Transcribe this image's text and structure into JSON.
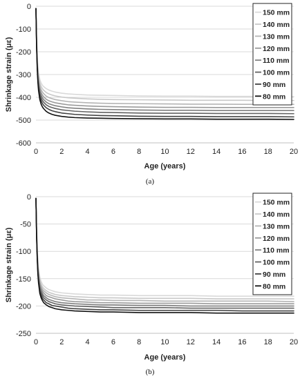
{
  "chart_data": [
    {
      "type": "line",
      "panel_label": "(a)",
      "xlabel": "Age (years)",
      "ylabel": "Shrinkage strain (με)",
      "xlim": [
        0,
        20
      ],
      "ylim": [
        -600,
        0
      ],
      "xticks": [
        0,
        2,
        4,
        6,
        8,
        10,
        12,
        14,
        16,
        18,
        20
      ],
      "yticks": [
        0,
        -100,
        -200,
        -300,
        -400,
        -500,
        -600
      ],
      "grid": "horizontal",
      "legend_position": "top-right",
      "series": [
        {
          "name": "150 mm",
          "color": "#d9d9d9",
          "x": [
            0,
            0.05,
            0.1,
            0.15,
            0.2,
            0.3,
            0.4,
            0.5,
            0.6,
            0.8,
            1,
            1.25,
            1.5,
            2,
            2.5,
            3,
            4,
            5,
            6,
            8,
            10,
            12,
            14,
            16,
            18,
            20
          ],
          "y": [
            -10,
            -144,
            -221,
            -265,
            -292,
            -322,
            -337,
            -347,
            -353,
            -362,
            -368,
            -373,
            -377,
            -382,
            -385,
            -387,
            -390,
            -391,
            -392,
            -394,
            -395,
            -395,
            -396,
            -396,
            -396,
            -397
          ]
        },
        {
          "name": "140 mm",
          "color": "#c8c8c8",
          "x": [
            0,
            0.05,
            0.1,
            0.15,
            0.2,
            0.3,
            0.4,
            0.5,
            0.6,
            0.8,
            1,
            1.25,
            1.5,
            2,
            2.5,
            3,
            4,
            5,
            6,
            8,
            10,
            12,
            14,
            16,
            18,
            20
          ],
          "y": [
            -10,
            -149,
            -230,
            -277,
            -305,
            -336,
            -352,
            -362,
            -369,
            -379,
            -385,
            -390,
            -394,
            -399,
            -402,
            -404,
            -407,
            -409,
            -410,
            -411,
            -412,
            -413,
            -413,
            -413,
            -414,
            -414
          ]
        },
        {
          "name": "130 mm",
          "color": "#b4b4b4",
          "x": [
            0,
            0.05,
            0.1,
            0.15,
            0.2,
            0.3,
            0.4,
            0.5,
            0.6,
            0.8,
            1,
            1.25,
            1.5,
            2,
            2.5,
            3,
            4,
            5,
            6,
            8,
            10,
            12,
            14,
            16,
            18,
            20
          ],
          "y": [
            -10,
            -155,
            -239,
            -288,
            -317,
            -350,
            -366,
            -377,
            -384,
            -395,
            -401,
            -406,
            -410,
            -415,
            -419,
            -421,
            -424,
            -426,
            -427,
            -428,
            -429,
            -430,
            -430,
            -431,
            -431,
            -431
          ]
        },
        {
          "name": "120 mm",
          "color": "#9a9a9a",
          "x": [
            0,
            0.05,
            0.1,
            0.15,
            0.2,
            0.3,
            0.4,
            0.5,
            0.6,
            0.8,
            1,
            1.25,
            1.5,
            2,
            2.5,
            3,
            4,
            5,
            6,
            8,
            10,
            12,
            14,
            16,
            18,
            20
          ],
          "y": [
            -10,
            -160,
            -247,
            -297,
            -328,
            -362,
            -379,
            -390,
            -398,
            -409,
            -415,
            -420,
            -424,
            -429,
            -433,
            -435,
            -438,
            -440,
            -441,
            -443,
            -444,
            -444,
            -445,
            -445,
            -445,
            -445
          ]
        },
        {
          "name": "110 mm",
          "color": "#7f7f7f",
          "x": [
            0,
            0.05,
            0.1,
            0.15,
            0.2,
            0.3,
            0.4,
            0.5,
            0.6,
            0.8,
            1,
            1.25,
            1.5,
            2,
            2.5,
            3,
            4,
            5,
            6,
            8,
            10,
            12,
            14,
            16,
            18,
            20
          ],
          "y": [
            -10,
            -164,
            -254,
            -306,
            -338,
            -373,
            -391,
            -402,
            -410,
            -421,
            -428,
            -433,
            -437,
            -442,
            -446,
            -448,
            -451,
            -453,
            -454,
            -456,
            -457,
            -457,
            -458,
            -458,
            -458,
            -458
          ]
        },
        {
          "name": "100 mm",
          "color": "#626262",
          "x": [
            0,
            0.05,
            0.1,
            0.15,
            0.2,
            0.3,
            0.4,
            0.5,
            0.6,
            0.8,
            1,
            1.25,
            1.5,
            2,
            2.5,
            3,
            4,
            5,
            6,
            8,
            10,
            12,
            14,
            16,
            18,
            20
          ],
          "y": [
            -10,
            -168,
            -261,
            -315,
            -348,
            -384,
            -402,
            -414,
            -422,
            -433,
            -440,
            -445,
            -449,
            -455,
            -458,
            -461,
            -464,
            -466,
            -467,
            -469,
            -470,
            -470,
            -471,
            -471,
            -471,
            -472
          ]
        },
        {
          "name": "90 mm",
          "color": "#404040",
          "x": [
            0,
            0.05,
            0.1,
            0.15,
            0.2,
            0.3,
            0.4,
            0.5,
            0.6,
            0.8,
            1,
            1.25,
            1.5,
            2,
            2.5,
            3,
            4,
            5,
            6,
            8,
            10,
            12,
            14,
            16,
            18,
            20
          ],
          "y": [
            -10,
            -173,
            -268,
            -324,
            -358,
            -396,
            -415,
            -427,
            -435,
            -446,
            -453,
            -459,
            -463,
            -469,
            -472,
            -475,
            -478,
            -480,
            -481,
            -483,
            -484,
            -484,
            -485,
            -485,
            -485,
            -486
          ]
        },
        {
          "name": "80 mm",
          "color": "#111111",
          "x": [
            0,
            0.05,
            0.1,
            0.15,
            0.2,
            0.3,
            0.4,
            0.5,
            0.6,
            0.8,
            1,
            1.25,
            1.5,
            2,
            2.5,
            3,
            4,
            5,
            6,
            8,
            10,
            12,
            14,
            16,
            18,
            20
          ],
          "y": [
            -10,
            -177,
            -276,
            -334,
            -370,
            -410,
            -430,
            -442,
            -450,
            -462,
            -469,
            -475,
            -479,
            -484,
            -487,
            -489,
            -491,
            -492,
            -493,
            -494,
            -495,
            -495,
            -496,
            -496,
            -496,
            -497
          ]
        }
      ]
    },
    {
      "type": "line",
      "panel_label": "(b)",
      "xlabel": "Age (years)",
      "ylabel": "Shrinkage strain (με)",
      "xlim": [
        0,
        20
      ],
      "ylim": [
        -250,
        0
      ],
      "xticks": [
        0,
        2,
        4,
        6,
        8,
        10,
        12,
        14,
        16,
        18,
        20
      ],
      "yticks": [
        0,
        -50,
        -100,
        -150,
        -200,
        -250
      ],
      "grid": "horizontal",
      "legend_position": "top-right",
      "series": [
        {
          "name": "150 mm",
          "color": "#d9d9d9",
          "x": [
            0,
            0.05,
            0.1,
            0.15,
            0.2,
            0.3,
            0.4,
            0.5,
            0.6,
            0.8,
            1,
            1.25,
            1.5,
            2,
            2.5,
            3,
            4,
            5,
            6,
            8,
            10,
            12,
            14,
            16,
            18,
            20
          ],
          "y": [
            -3,
            -60,
            -95,
            -117,
            -131,
            -147,
            -155,
            -160,
            -163,
            -167,
            -170,
            -172,
            -174,
            -176,
            -177,
            -178,
            -179,
            -180,
            -180,
            -181,
            -181,
            -181,
            -182,
            -182,
            -182,
            -182
          ]
        },
        {
          "name": "140 mm",
          "color": "#c8c8c8",
          "x": [
            0,
            0.05,
            0.1,
            0.15,
            0.2,
            0.3,
            0.4,
            0.5,
            0.6,
            0.8,
            1,
            1.25,
            1.5,
            2,
            2.5,
            3,
            4,
            5,
            6,
            8,
            10,
            12,
            14,
            16,
            18,
            20
          ],
          "y": [
            -3,
            -62,
            -98,
            -121,
            -135,
            -152,
            -160,
            -165,
            -168,
            -172,
            -175,
            -177,
            -179,
            -181,
            -182,
            -183,
            -184,
            -185,
            -185,
            -186,
            -186,
            -186,
            -187,
            -187,
            -187,
            -187
          ]
        },
        {
          "name": "130 mm",
          "color": "#b4b4b4",
          "x": [
            0,
            0.05,
            0.1,
            0.15,
            0.2,
            0.3,
            0.4,
            0.5,
            0.6,
            0.8,
            1,
            1.25,
            1.5,
            2,
            2.5,
            3,
            4,
            5,
            6,
            8,
            10,
            12,
            14,
            16,
            18,
            20
          ],
          "y": [
            -3,
            -64,
            -101,
            -125,
            -139,
            -156,
            -164,
            -169,
            -172,
            -176,
            -179,
            -181,
            -183,
            -185,
            -186,
            -187,
            -189,
            -189,
            -190,
            -190,
            -191,
            -191,
            -191,
            -191,
            -191,
            -192
          ]
        },
        {
          "name": "120 mm",
          "color": "#9a9a9a",
          "x": [
            0,
            0.05,
            0.1,
            0.15,
            0.2,
            0.3,
            0.4,
            0.5,
            0.6,
            0.8,
            1,
            1.25,
            1.5,
            2,
            2.5,
            3,
            4,
            5,
            6,
            8,
            10,
            12,
            14,
            16,
            18,
            20
          ],
          "y": [
            -3,
            -66,
            -104,
            -128,
            -143,
            -160,
            -168,
            -173,
            -176,
            -181,
            -183,
            -185,
            -187,
            -189,
            -191,
            -192,
            -193,
            -194,
            -194,
            -195,
            -195,
            -195,
            -196,
            -196,
            -196,
            -196
          ]
        },
        {
          "name": "110 mm",
          "color": "#7f7f7f",
          "x": [
            0,
            0.05,
            0.1,
            0.15,
            0.2,
            0.3,
            0.4,
            0.5,
            0.6,
            0.8,
            1,
            1.25,
            1.5,
            2,
            2.5,
            3,
            4,
            5,
            6,
            8,
            10,
            12,
            14,
            16,
            18,
            20
          ],
          "y": [
            -3,
            -67,
            -106,
            -131,
            -147,
            -164,
            -172,
            -177,
            -181,
            -185,
            -188,
            -190,
            -192,
            -194,
            -195,
            -196,
            -197,
            -198,
            -198,
            -199,
            -199,
            -200,
            -200,
            -200,
            -200,
            -200
          ]
        },
        {
          "name": "100 mm",
          "color": "#626262",
          "x": [
            0,
            0.05,
            0.1,
            0.15,
            0.2,
            0.3,
            0.4,
            0.5,
            0.6,
            0.8,
            1,
            1.25,
            1.5,
            2,
            2.5,
            3,
            4,
            5,
            6,
            8,
            10,
            12,
            14,
            16,
            18,
            20
          ],
          "y": [
            -3,
            -69,
            -109,
            -134,
            -150,
            -168,
            -176,
            -181,
            -185,
            -189,
            -192,
            -194,
            -196,
            -198,
            -199,
            -200,
            -201,
            -202,
            -203,
            -203,
            -203,
            -204,
            -204,
            -204,
            -204,
            -204
          ]
        },
        {
          "name": "90 mm",
          "color": "#404040",
          "x": [
            0,
            0.05,
            0.1,
            0.15,
            0.2,
            0.3,
            0.4,
            0.5,
            0.6,
            0.8,
            1,
            1.25,
            1.5,
            2,
            2.5,
            3,
            4,
            5,
            6,
            8,
            10,
            12,
            14,
            16,
            18,
            20
          ],
          "y": [
            -3,
            -71,
            -112,
            -138,
            -154,
            -172,
            -180,
            -186,
            -189,
            -194,
            -196,
            -199,
            -200,
            -202,
            -204,
            -205,
            -206,
            -207,
            -207,
            -208,
            -208,
            -208,
            -208,
            -209,
            -209,
            -209
          ]
        },
        {
          "name": "80 mm",
          "color": "#111111",
          "x": [
            0,
            0.05,
            0.1,
            0.15,
            0.2,
            0.3,
            0.4,
            0.5,
            0.6,
            0.8,
            1,
            1.25,
            1.5,
            2,
            2.5,
            3,
            4,
            5,
            6,
            8,
            10,
            12,
            14,
            16,
            18,
            20
          ],
          "y": [
            -3,
            -73,
            -115,
            -142,
            -158,
            -177,
            -185,
            -190,
            -194,
            -198,
            -201,
            -203,
            -205,
            -207,
            -208,
            -209,
            -210,
            -211,
            -211,
            -212,
            -212,
            -212,
            -213,
            -213,
            -213,
            -213
          ]
        }
      ]
    }
  ]
}
